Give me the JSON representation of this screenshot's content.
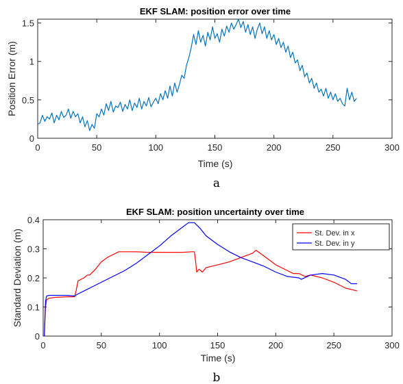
{
  "captions": [
    "a",
    "b"
  ],
  "chart_data": [
    {
      "type": "line",
      "title": "EKF SLAM: position error over time",
      "xlabel": "Time (s)",
      "ylabel": "Position Error (m)",
      "xlim": [
        0,
        300
      ],
      "ylim": [
        0,
        1.55
      ],
      "xticks": [
        "0",
        "50",
        "100",
        "150",
        "200",
        "250",
        "300"
      ],
      "yticks": [
        "0",
        "0.5",
        "1",
        "1.5"
      ],
      "xtick_values": [
        0,
        50,
        100,
        150,
        200,
        250,
        300
      ],
      "ytick_values": [
        0,
        0.5,
        1,
        1.5
      ],
      "grid": false,
      "series": [
        {
          "color": "#0072bd",
          "x": [
            0,
            2,
            4,
            6,
            8,
            10,
            12,
            14,
            16,
            18,
            20,
            22,
            24,
            26,
            28,
            30,
            32,
            34,
            36,
            38,
            40,
            42,
            44,
            46,
            48,
            50,
            52,
            54,
            56,
            58,
            60,
            62,
            64,
            66,
            68,
            70,
            72,
            74,
            76,
            78,
            80,
            82,
            84,
            86,
            88,
            90,
            92,
            94,
            96,
            98,
            100,
            102,
            104,
            106,
            108,
            110,
            112,
            114,
            116,
            118,
            120,
            122,
            124,
            126,
            128,
            130,
            132,
            134,
            136,
            138,
            140,
            142,
            144,
            146,
            148,
            150,
            152,
            154,
            156,
            158,
            160,
            162,
            164,
            166,
            168,
            170,
            172,
            174,
            176,
            178,
            180,
            182,
            184,
            186,
            188,
            190,
            192,
            194,
            196,
            198,
            200,
            202,
            204,
            206,
            208,
            210,
            212,
            214,
            216,
            218,
            220,
            222,
            224,
            226,
            228,
            230,
            232,
            234,
            236,
            238,
            240,
            242,
            244,
            246,
            248,
            250,
            252,
            254,
            256,
            258,
            260,
            262,
            264,
            266,
            268,
            270
          ],
          "y": [
            0.18,
            0.2,
            0.3,
            0.22,
            0.28,
            0.25,
            0.33,
            0.2,
            0.3,
            0.24,
            0.35,
            0.27,
            0.3,
            0.38,
            0.26,
            0.35,
            0.28,
            0.32,
            0.2,
            0.28,
            0.15,
            0.23,
            0.1,
            0.18,
            0.13,
            0.32,
            0.28,
            0.38,
            0.3,
            0.45,
            0.36,
            0.48,
            0.34,
            0.42,
            0.4,
            0.47,
            0.35,
            0.44,
            0.38,
            0.5,
            0.36,
            0.46,
            0.4,
            0.52,
            0.38,
            0.48,
            0.42,
            0.53,
            0.41,
            0.47,
            0.52,
            0.45,
            0.58,
            0.5,
            0.62,
            0.52,
            0.68,
            0.55,
            0.72,
            0.6,
            0.7,
            0.82,
            0.78,
            0.95,
            1.05,
            1.18,
            1.35,
            1.22,
            1.4,
            1.25,
            1.34,
            1.2,
            1.38,
            1.28,
            1.45,
            1.3,
            1.36,
            1.25,
            1.42,
            1.33,
            1.46,
            1.38,
            1.5,
            1.42,
            1.48,
            1.55,
            1.44,
            1.52,
            1.38,
            1.48,
            1.35,
            1.45,
            1.3,
            1.42,
            1.5,
            1.36,
            1.45,
            1.3,
            1.4,
            1.28,
            1.35,
            1.22,
            1.3,
            1.18,
            1.25,
            1.12,
            1.2,
            1.05,
            1.12,
            0.98,
            1.02,
            0.88,
            0.95,
            0.8,
            0.85,
            0.72,
            0.78,
            0.65,
            0.72,
            0.6,
            0.64,
            0.55,
            0.65,
            0.52,
            0.6,
            0.5,
            0.58,
            0.48,
            0.52,
            0.45,
            0.42,
            0.65,
            0.5,
            0.6,
            0.48,
            0.52
          ]
        }
      ]
    },
    {
      "type": "line",
      "title": "EKF SLAM: position uncertainty over time",
      "xlabel": "Time (s)",
      "ylabel": "Standard Deviation (m)",
      "xlim": [
        0,
        300
      ],
      "ylim": [
        0,
        0.4
      ],
      "xticks": [
        "0",
        "50",
        "100",
        "150",
        "200",
        "250",
        "300"
      ],
      "yticks": [
        "0",
        "0.1",
        "0.2",
        "0.3",
        "0.4"
      ],
      "xtick_values": [
        0,
        50,
        100,
        150,
        200,
        250,
        300
      ],
      "ytick_values": [
        0,
        0.1,
        0.2,
        0.3,
        0.4
      ],
      "grid": false,
      "legend_position": "top-right",
      "series": [
        {
          "name": "St. Dev. in x",
          "color": "#ff0000",
          "x": [
            1,
            1.5,
            2,
            3,
            5,
            10,
            20,
            27,
            28,
            30,
            35,
            38,
            40,
            45,
            50,
            55,
            60,
            65,
            70,
            80,
            90,
            100,
            110,
            120,
            128,
            130,
            131,
            132,
            134,
            137,
            140,
            150,
            160,
            170,
            180,
            183,
            190,
            200,
            210,
            215,
            220,
            225,
            230,
            240,
            250,
            260,
            270
          ],
          "y": [
            0,
            0.05,
            0.1,
            0.125,
            0.13,
            0.133,
            0.135,
            0.135,
            0.15,
            0.19,
            0.2,
            0.21,
            0.21,
            0.23,
            0.255,
            0.27,
            0.28,
            0.29,
            0.29,
            0.29,
            0.288,
            0.288,
            0.288,
            0.288,
            0.29,
            0.29,
            0.26,
            0.22,
            0.23,
            0.22,
            0.235,
            0.245,
            0.255,
            0.27,
            0.285,
            0.295,
            0.275,
            0.245,
            0.225,
            0.215,
            0.215,
            0.205,
            0.21,
            0.2,
            0.185,
            0.165,
            0.155
          ]
        },
        {
          "name": "St. Dev. in y",
          "color": "#0000ff",
          "x": [
            1,
            1.5,
            2,
            3,
            5,
            10,
            20,
            27,
            30,
            40,
            50,
            60,
            70,
            80,
            90,
            100,
            110,
            120,
            125,
            128,
            130,
            135,
            140,
            150,
            160,
            170,
            180,
            190,
            200,
            210,
            220,
            222,
            230,
            240,
            250,
            260,
            265,
            270
          ],
          "y": [
            0,
            0.06,
            0.12,
            0.138,
            0.14,
            0.14,
            0.14,
            0.138,
            0.145,
            0.165,
            0.185,
            0.205,
            0.225,
            0.25,
            0.28,
            0.31,
            0.345,
            0.375,
            0.39,
            0.39,
            0.39,
            0.37,
            0.345,
            0.315,
            0.29,
            0.27,
            0.255,
            0.24,
            0.22,
            0.205,
            0.2,
            0.195,
            0.21,
            0.215,
            0.21,
            0.195,
            0.18,
            0.18
          ]
        }
      ]
    }
  ]
}
